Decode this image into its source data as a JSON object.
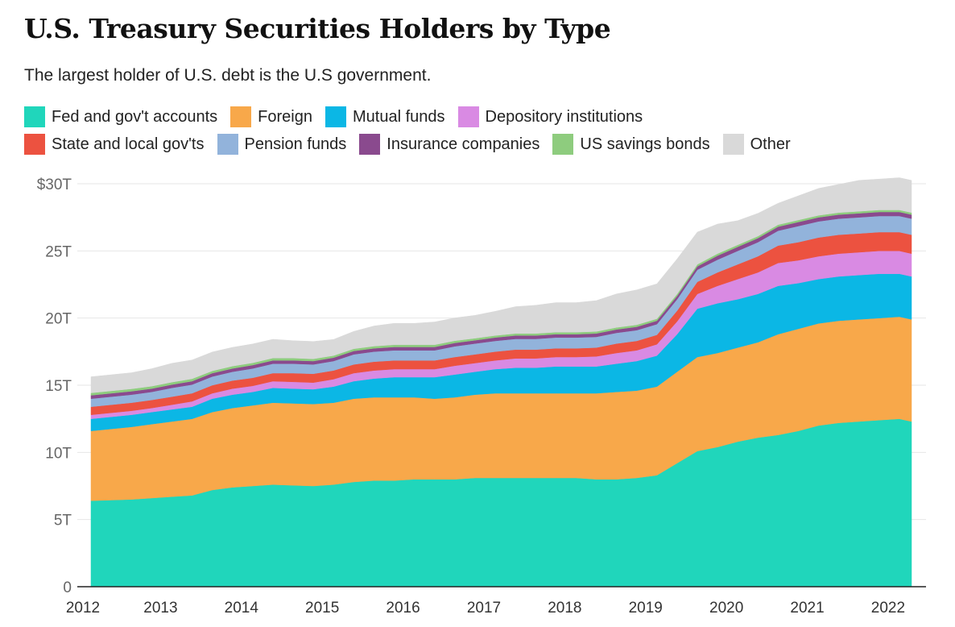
{
  "chart_data": {
    "type": "area",
    "stacked": true,
    "title": "U.S. Treasury Securities Holders by Type",
    "subtitle": "The largest holder of U.S. debt is the U.S government.",
    "ylim": [
      0,
      30
    ],
    "yticks": [
      0,
      5,
      10,
      15,
      20,
      25,
      30
    ],
    "ytick_labels": [
      "0",
      "5T",
      "10T",
      "15T",
      "20T",
      "25T",
      "$30T"
    ],
    "xticks": [
      2012,
      2013,
      2014,
      2015,
      2016,
      2017,
      2018,
      2019,
      2020,
      2021,
      2022
    ],
    "xtick_labels": [
      "2012",
      "2013",
      "2014",
      "2015",
      "2016",
      "2017",
      "2018",
      "2019",
      "2020",
      "2021",
      "2022"
    ],
    "legend_position": "top",
    "grid": true,
    "x": [
      2012.0,
      2012.25,
      2012.5,
      2012.75,
      2013.0,
      2013.25,
      2013.5,
      2013.75,
      2014.0,
      2014.25,
      2014.5,
      2014.75,
      2015.0,
      2015.25,
      2015.5,
      2015.75,
      2016.0,
      2016.25,
      2016.5,
      2016.75,
      2017.0,
      2017.25,
      2017.5,
      2017.75,
      2018.0,
      2018.25,
      2018.5,
      2018.75,
      2019.0,
      2019.25,
      2019.5,
      2019.75,
      2020.0,
      2020.25,
      2020.5,
      2020.75,
      2021.0,
      2021.25,
      2021.5,
      2021.75,
      2022.0,
      2022.15
    ],
    "series": [
      {
        "name": "Fed and gov't accounts",
        "color": "#20d6bb",
        "values": [
          6.4,
          6.45,
          6.5,
          6.6,
          6.7,
          6.8,
          7.2,
          7.4,
          7.5,
          7.6,
          7.55,
          7.5,
          7.6,
          7.8,
          7.9,
          7.9,
          8.0,
          8.0,
          8.0,
          8.1,
          8.1,
          8.1,
          8.1,
          8.1,
          8.1,
          8.0,
          8.0,
          8.1,
          8.3,
          9.2,
          10.1,
          10.4,
          10.8,
          11.1,
          11.3,
          11.6,
          12.0,
          12.2,
          12.3,
          12.4,
          12.5,
          12.3
        ]
      },
      {
        "name": "Foreign",
        "color": "#f8a84a",
        "values": [
          5.2,
          5.3,
          5.4,
          5.5,
          5.6,
          5.7,
          5.8,
          5.9,
          6.0,
          6.1,
          6.1,
          6.1,
          6.1,
          6.2,
          6.2,
          6.2,
          6.1,
          6.0,
          6.1,
          6.2,
          6.3,
          6.3,
          6.3,
          6.3,
          6.3,
          6.4,
          6.5,
          6.5,
          6.6,
          6.8,
          7.0,
          7.0,
          7.0,
          7.1,
          7.5,
          7.6,
          7.6,
          7.6,
          7.6,
          7.6,
          7.6,
          7.6
        ]
      },
      {
        "name": "Mutual funds",
        "color": "#0bb7e5",
        "values": [
          0.9,
          0.9,
          0.9,
          0.9,
          0.9,
          0.9,
          1.0,
          1.0,
          1.0,
          1.1,
          1.1,
          1.1,
          1.2,
          1.3,
          1.4,
          1.5,
          1.5,
          1.6,
          1.7,
          1.7,
          1.8,
          1.9,
          1.9,
          2.0,
          2.0,
          2.0,
          2.1,
          2.2,
          2.3,
          2.8,
          3.6,
          3.7,
          3.6,
          3.6,
          3.6,
          3.4,
          3.3,
          3.3,
          3.3,
          3.3,
          3.2,
          3.2
        ]
      },
      {
        "name": "Depository institutions",
        "color": "#d98ae3",
        "values": [
          0.3,
          0.3,
          0.3,
          0.3,
          0.35,
          0.4,
          0.4,
          0.45,
          0.45,
          0.5,
          0.5,
          0.5,
          0.55,
          0.6,
          0.6,
          0.6,
          0.6,
          0.6,
          0.65,
          0.65,
          0.65,
          0.7,
          0.7,
          0.7,
          0.7,
          0.75,
          0.8,
          0.8,
          0.85,
          0.95,
          1.1,
          1.3,
          1.5,
          1.6,
          1.7,
          1.7,
          1.7,
          1.7,
          1.7,
          1.7,
          1.7,
          1.7
        ]
      },
      {
        "name": "State and local gov'ts",
        "color": "#ec5240",
        "values": [
          0.6,
          0.6,
          0.6,
          0.6,
          0.6,
          0.6,
          0.6,
          0.6,
          0.6,
          0.6,
          0.65,
          0.65,
          0.65,
          0.65,
          0.65,
          0.65,
          0.65,
          0.65,
          0.65,
          0.65,
          0.65,
          0.65,
          0.65,
          0.65,
          0.65,
          0.65,
          0.7,
          0.7,
          0.7,
          0.8,
          0.9,
          1.0,
          1.1,
          1.2,
          1.3,
          1.35,
          1.4,
          1.4,
          1.4,
          1.4,
          1.4,
          1.4
        ]
      },
      {
        "name": "Pension funds",
        "color": "#92b3db",
        "values": [
          0.6,
          0.6,
          0.6,
          0.6,
          0.65,
          0.65,
          0.65,
          0.65,
          0.7,
          0.7,
          0.7,
          0.7,
          0.7,
          0.75,
          0.75,
          0.75,
          0.75,
          0.75,
          0.8,
          0.8,
          0.8,
          0.8,
          0.8,
          0.8,
          0.8,
          0.8,
          0.8,
          0.8,
          0.8,
          0.85,
          0.9,
          0.95,
          1.0,
          1.05,
          1.1,
          1.2,
          1.2,
          1.2,
          1.2,
          1.2,
          1.2,
          1.2
        ]
      },
      {
        "name": "Insurance companies",
        "color": "#8a4a8e",
        "values": [
          0.25,
          0.25,
          0.25,
          0.25,
          0.25,
          0.25,
          0.25,
          0.25,
          0.25,
          0.25,
          0.25,
          0.25,
          0.25,
          0.25,
          0.25,
          0.25,
          0.25,
          0.25,
          0.25,
          0.25,
          0.25,
          0.25,
          0.25,
          0.25,
          0.25,
          0.25,
          0.25,
          0.25,
          0.25,
          0.25,
          0.25,
          0.3,
          0.3,
          0.3,
          0.3,
          0.3,
          0.3,
          0.3,
          0.3,
          0.3,
          0.3,
          0.3
        ]
      },
      {
        "name": "US savings bonds",
        "color": "#8ecc7e",
        "values": [
          0.18,
          0.18,
          0.18,
          0.18,
          0.18,
          0.18,
          0.17,
          0.17,
          0.17,
          0.17,
          0.17,
          0.16,
          0.16,
          0.16,
          0.16,
          0.16,
          0.16,
          0.16,
          0.16,
          0.15,
          0.15,
          0.15,
          0.15,
          0.15,
          0.15,
          0.15,
          0.15,
          0.15,
          0.15,
          0.15,
          0.15,
          0.15,
          0.15,
          0.15,
          0.15,
          0.15,
          0.15,
          0.15,
          0.15,
          0.15,
          0.15,
          0.15
        ]
      },
      {
        "name": "Other",
        "color": "#d9d9d9",
        "values": [
          1.2,
          1.2,
          1.2,
          1.3,
          1.4,
          1.4,
          1.4,
          1.4,
          1.4,
          1.4,
          1.3,
          1.3,
          1.2,
          1.3,
          1.5,
          1.6,
          1.6,
          1.7,
          1.7,
          1.7,
          1.8,
          2.0,
          2.1,
          2.2,
          2.2,
          2.3,
          2.5,
          2.6,
          2.6,
          2.6,
          2.4,
          2.2,
          1.8,
          1.7,
          1.6,
          1.8,
          2.0,
          2.1,
          2.3,
          2.3,
          2.4,
          2.4
        ]
      }
    ]
  },
  "legend": {
    "row1": [
      "Fed and gov't accounts",
      "Foreign",
      "Mutual funds",
      "Depository institutions"
    ],
    "row2": [
      "State and local gov'ts",
      "Pension funds",
      "Insurance companies",
      "US savings bonds",
      "Other"
    ]
  },
  "colors": {
    "fed": "#20d6bb",
    "foreign": "#f8a84a",
    "mutual": "#0bb7e5",
    "depository": "#d98ae3",
    "state": "#ec5240",
    "pension": "#92b3db",
    "insurance": "#8a4a8e",
    "savings": "#8ecc7e",
    "other": "#d9d9d9"
  }
}
